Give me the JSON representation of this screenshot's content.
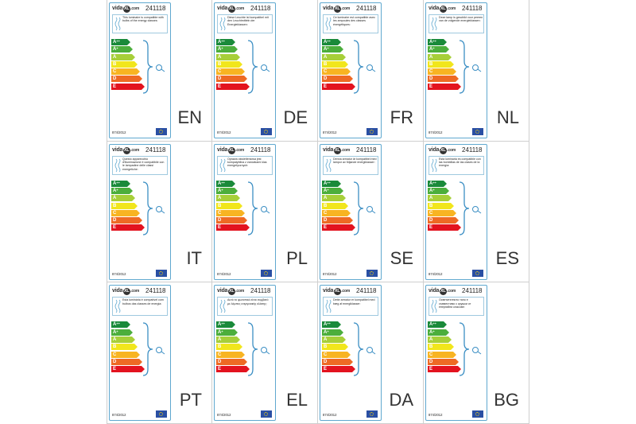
{
  "brand": {
    "text_left": "vida",
    "text_circle": "XL",
    "text_right": ".com"
  },
  "product_code": "241118",
  "regulation": "874/2012",
  "energy_classes": [
    {
      "main": "A",
      "sup": "++",
      "color": "#1a8a3a"
    },
    {
      "main": "A",
      "sup": "+",
      "color": "#4cae3c"
    },
    {
      "main": "A",
      "sup": "",
      "color": "#a7cf39"
    },
    {
      "main": "B",
      "sup": "",
      "color": "#f1e61c"
    },
    {
      "main": "C",
      "sup": "",
      "color": "#f8b422"
    },
    {
      "main": "D",
      "sup": "",
      "color": "#ee6a24"
    },
    {
      "main": "E",
      "sup": "",
      "color": "#e3131f"
    }
  ],
  "bar_widths_note": "",
  "labels": [
    {
      "lang": "EN",
      "text": "This luminaire is compatible with bulbs of the energy classes:"
    },
    {
      "lang": "DE",
      "text": "Diese Leuchte ist kompatibel mit den Leuchtmitteln der Energieklassen:"
    },
    {
      "lang": "FR",
      "text": "Ce luminaire est compatible avec les ampoules des classes énergétiques:"
    },
    {
      "lang": "NL",
      "text": "Deze lamp is geschikt voor peeren van de volgende energieklassen:"
    },
    {
      "lang": "IT",
      "text": "Questo apparecchio d'illuminazione è compatibile con le lampadine delle classi energetiche:"
    },
    {
      "lang": "PL",
      "text": "Oprawa oświetleniowa jest kompatybilna z żarówkami klas energetycznych:"
    },
    {
      "lang": "SE",
      "text": "Denna armatur är kompatibel med lampor av följande energiklasser:"
    },
    {
      "lang": "ES",
      "text": "Esta luminaria es compatible con las bombillas de las clases de la energía:"
    },
    {
      "lang": "PT",
      "text": "Esta luminária é compatível com bulbos das classes de energia:"
    },
    {
      "lang": "EL",
      "text": "Αυτό το φωτιστικό είναι συμβατό με λάμπες ενεργειακής κλάσης:"
    },
    {
      "lang": "DA",
      "text": "Dette armatur er kompatibel med bæg af energiklasser:"
    },
    {
      "lang": "BG",
      "text": "Осветителното тяло е съвместимо с крушки от енергийни класове:"
    }
  ]
}
